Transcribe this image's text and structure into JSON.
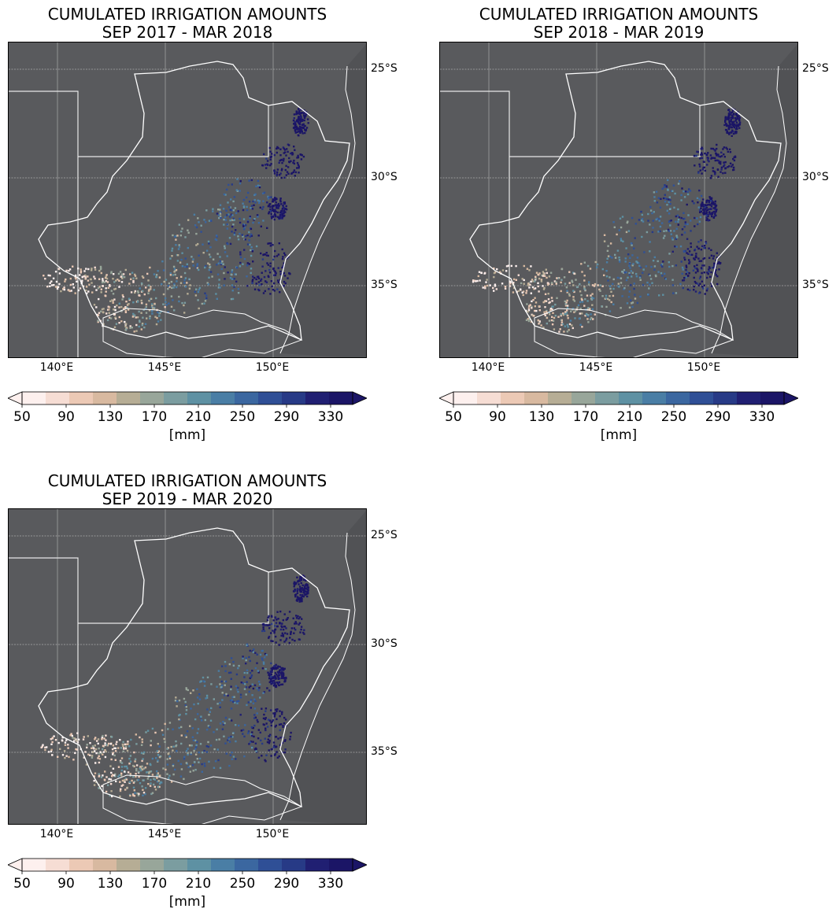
{
  "panels": [
    {
      "title_line1": "CUMULATED IRRIGATION AMOUNTS",
      "title_line2": "SEP 2017 - MAR 2018"
    },
    {
      "title_line1": "CUMULATED IRRIGATION AMOUNTS",
      "title_line2": "SEP 2018 - MAR 2019"
    },
    {
      "title_line1": "CUMULATED IRRIGATION AMOUNTS",
      "title_line2": "SEP 2019 - MAR 2020"
    }
  ],
  "axes": {
    "lat_labels": [
      "25°S",
      "30°S",
      "35°S"
    ],
    "lon_labels": [
      "140°E",
      "145°E",
      "150°E"
    ]
  },
  "colorbar": {
    "ticks": [
      "50",
      "90",
      "130",
      "170",
      "210",
      "250",
      "290",
      "330"
    ],
    "unit": "[mm]",
    "range": [
      50,
      350
    ],
    "extend": "both",
    "colors": [
      "#fdf0ee",
      "#f6ddd4",
      "#ecc9b5",
      "#d8b9a0",
      "#b6ad95",
      "#98a69a",
      "#7b9da0",
      "#5e91a3",
      "#4a7ea5",
      "#3b67a0",
      "#2f4f96",
      "#273a86",
      "#201f72",
      "#1b1566"
    ]
  },
  "map_style": {
    "background": "#595a5d",
    "boundary_color": "#ffffff",
    "grid_color": "#a9a9a9"
  }
}
